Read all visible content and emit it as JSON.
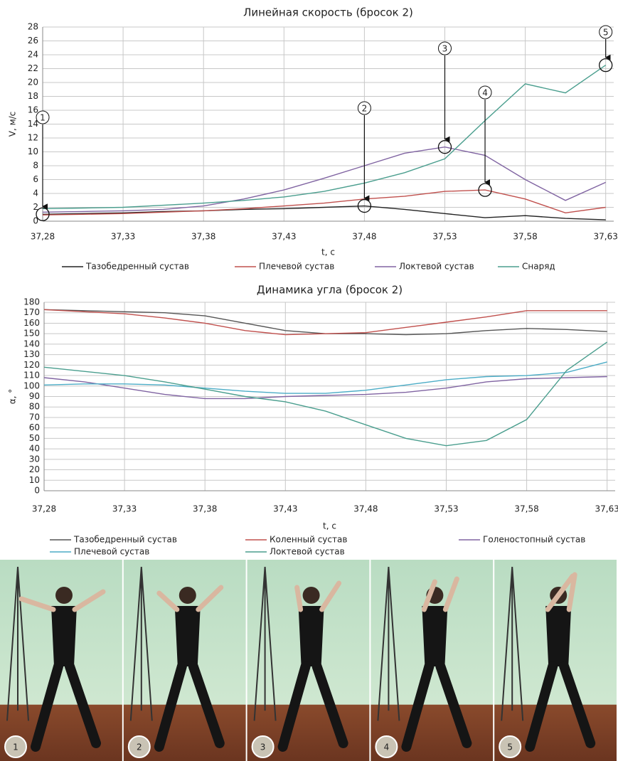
{
  "chart_data": [
    {
      "type": "line",
      "title": "Линейная скорость (бросок 2)",
      "x_label": "t, c",
      "y_label": "V, м/с",
      "x": [
        37.28,
        37.305,
        37.33,
        37.355,
        37.38,
        37.405,
        37.43,
        37.455,
        37.48,
        37.505,
        37.53,
        37.555,
        37.58,
        37.605,
        37.63
      ],
      "xlim": [
        37.28,
        37.635
      ],
      "xticks": [
        {
          "value": 37.28,
          "label": "37,28"
        },
        {
          "value": 37.33,
          "label": "37,33"
        },
        {
          "value": 37.38,
          "label": "37,38"
        },
        {
          "value": 37.43,
          "label": "37,43"
        },
        {
          "value": 37.48,
          "label": "37,48"
        },
        {
          "value": 37.53,
          "label": "37,53"
        },
        {
          "value": 37.58,
          "label": "37,58"
        },
        {
          "value": 37.63,
          "label": "37,63"
        }
      ],
      "ylim": [
        0,
        28
      ],
      "yticks": [
        0,
        2,
        4,
        6,
        8,
        10,
        12,
        14,
        16,
        18,
        20,
        22,
        24,
        26,
        28
      ],
      "grid": true,
      "series": [
        {
          "name": "Тазобедренный сустав",
          "color": "#222222",
          "values": [
            1.0,
            1.1,
            1.2,
            1.4,
            1.5,
            1.7,
            1.8,
            2.0,
            2.2,
            1.7,
            1.1,
            0.5,
            0.8,
            0.4,
            0.2
          ]
        },
        {
          "name": "Плечевой сустав",
          "color": "#c0504d",
          "values": [
            0.9,
            1.0,
            1.1,
            1.3,
            1.5,
            1.8,
            2.2,
            2.6,
            3.2,
            3.6,
            4.3,
            4.5,
            3.2,
            1.2,
            2.0
          ]
        },
        {
          "name": "Локтевой сустав",
          "color": "#8064a2",
          "values": [
            1.3,
            1.4,
            1.5,
            1.7,
            2.2,
            3.2,
            4.5,
            6.2,
            8.0,
            9.8,
            10.7,
            9.5,
            6.0,
            3.0,
            5.6
          ]
        },
        {
          "name": "Снаряд",
          "color": "#4a9e8e",
          "values": [
            1.8,
            1.9,
            2.0,
            2.3,
            2.6,
            3.0,
            3.5,
            4.3,
            5.5,
            7.0,
            9.0,
            14.5,
            19.8,
            18.5,
            22.5
          ]
        }
      ],
      "annotations": [
        {
          "label": "1",
          "x": 37.28,
          "y": 1.0
        },
        {
          "label": "2",
          "x": 37.48,
          "y": 2.2
        },
        {
          "label": "3",
          "x": 37.53,
          "y": 10.7
        },
        {
          "label": "4",
          "x": 37.555,
          "y": 4.5
        },
        {
          "label": "5",
          "x": 37.63,
          "y": 22.5
        }
      ]
    },
    {
      "type": "line",
      "title": "Динамика угла (бросок 2)",
      "x_label": "t, c",
      "y_label": "α, °",
      "x": [
        37.28,
        37.305,
        37.33,
        37.355,
        37.38,
        37.405,
        37.43,
        37.455,
        37.48,
        37.505,
        37.53,
        37.555,
        37.58,
        37.605,
        37.63
      ],
      "xlim": [
        37.28,
        37.635
      ],
      "xticks": [
        {
          "value": 37.28,
          "label": "37,28"
        },
        {
          "value": 37.33,
          "label": "37,33"
        },
        {
          "value": 37.38,
          "label": "37,38"
        },
        {
          "value": 37.43,
          "label": "37,43"
        },
        {
          "value": 37.48,
          "label": "37,48"
        },
        {
          "value": 37.53,
          "label": "37,53"
        },
        {
          "value": 37.58,
          "label": "37,58"
        },
        {
          "value": 37.63,
          "label": "37,63"
        }
      ],
      "ylim": [
        0,
        180
      ],
      "yticks": [
        0,
        10,
        20,
        30,
        40,
        50,
        60,
        70,
        80,
        90,
        100,
        110,
        120,
        130,
        140,
        150,
        160,
        170,
        180
      ],
      "grid": true,
      "series": [
        {
          "name": "Тазобедренный сустав",
          "color": "#555555",
          "values": [
            173,
            172,
            171,
            170,
            167,
            160,
            153,
            150,
            150,
            149,
            150,
            153,
            155,
            154,
            152
          ]
        },
        {
          "name": "Коленный сустав",
          "color": "#c0504d",
          "values": [
            173,
            171,
            169,
            165,
            160,
            153,
            149,
            150,
            151,
            156,
            161,
            166,
            172,
            172,
            172
          ]
        },
        {
          "name": "Голеностопный сустав",
          "color": "#8064a2",
          "values": [
            108,
            104,
            98,
            92,
            88,
            88,
            90,
            91,
            92,
            94,
            98,
            104,
            107,
            108,
            109
          ]
        },
        {
          "name": "Плечевой сустав",
          "color": "#4bacc6",
          "values": [
            101,
            102,
            102,
            101,
            98,
            95,
            93,
            93,
            96,
            101,
            106,
            109,
            110,
            113,
            123
          ]
        },
        {
          "name": "Локтевой сустав",
          "color": "#4a9e8e",
          "values": [
            118,
            114,
            110,
            104,
            97,
            90,
            85,
            76,
            63,
            50,
            43,
            48,
            68,
            115,
            142
          ]
        }
      ]
    }
  ],
  "photos": {
    "labels": [
      "1",
      "2",
      "3",
      "4",
      "5"
    ]
  }
}
